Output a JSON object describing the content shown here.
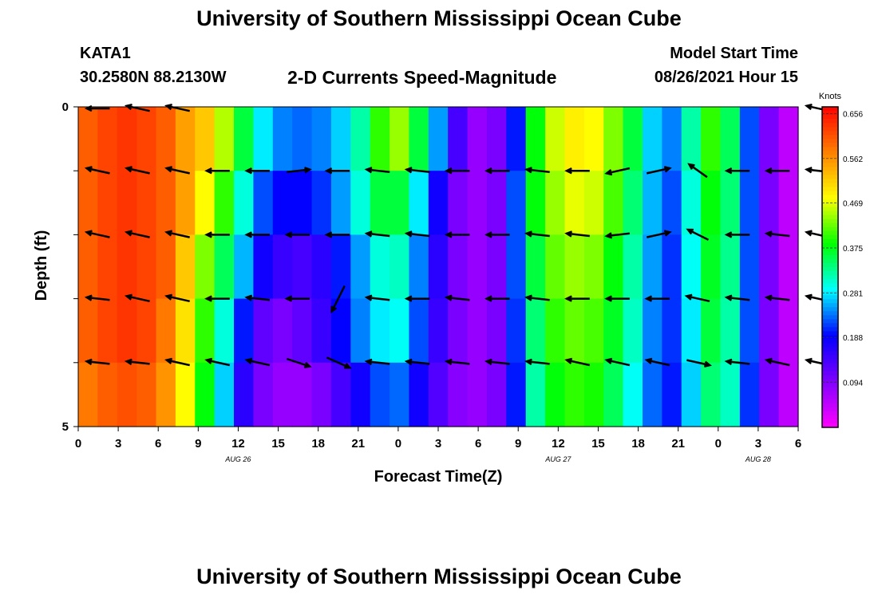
{
  "header": {
    "title": "University of Southern Mississippi Ocean Cube",
    "station": "KATA1",
    "coordinates": "30.2580N  88.2130W",
    "subtitle": "2-D Currents Speed-Magnitude",
    "model_start_label": "Model Start Time",
    "model_start_value": "08/26/2021 Hour 15"
  },
  "footer": {
    "title": "University of Southern Mississippi Ocean Cube"
  },
  "chart_data": {
    "type": "heatmap",
    "xlabel": "Forecast Time(Z)",
    "ylabel": "Depth (ft)",
    "x_tick_labels": [
      "0",
      "3",
      "6",
      "9",
      "12",
      "15",
      "18",
      "21",
      "0",
      "3",
      "6",
      "9",
      "12",
      "15",
      "18",
      "21",
      "0",
      "3",
      "6"
    ],
    "date_labels": [
      {
        "label": "AUG 26",
        "tick_index": 4
      },
      {
        "label": "AUG 27",
        "tick_index": 12
      },
      {
        "label": "AUG 28",
        "tick_index": 17
      }
    ],
    "y_tick_labels": [
      "0",
      "5"
    ],
    "ylim": [
      0,
      5
    ],
    "colorbar": {
      "unit": "Knots",
      "min": 0.0,
      "max": 0.67,
      "ticks": [
        "0.656",
        "0.562",
        "0.469",
        "0.375",
        "0.281",
        "0.188",
        "0.094"
      ],
      "tick_values": [
        0.656,
        0.562,
        0.469,
        0.375,
        0.281,
        0.188,
        0.094
      ],
      "colors": [
        "#ff00ff",
        "#8000ff",
        "#0000ff",
        "#00ffff",
        "#00ff00",
        "#ffff00",
        "#ff8000",
        "#ff0000"
      ]
    },
    "depth_layers": 5,
    "time_steps": 37,
    "speed_knots": [
      [
        0.6,
        0.62,
        0.63,
        0.62,
        0.6,
        0.55,
        0.52,
        0.45,
        0.36,
        0.28,
        0.24,
        0.23,
        0.24,
        0.27,
        0.32,
        0.4,
        0.44,
        0.36,
        0.25,
        0.14,
        0.08,
        0.1,
        0.2,
        0.38,
        0.46,
        0.49,
        0.48,
        0.43,
        0.36,
        0.27,
        0.24,
        0.32,
        0.4,
        0.35,
        0.22,
        0.1,
        0.05
      ],
      [
        0.6,
        0.62,
        0.63,
        0.62,
        0.6,
        0.55,
        0.48,
        0.4,
        0.3,
        0.22,
        0.19,
        0.19,
        0.21,
        0.25,
        0.3,
        0.36,
        0.36,
        0.28,
        0.18,
        0.1,
        0.08,
        0.1,
        0.22,
        0.38,
        0.44,
        0.47,
        0.46,
        0.41,
        0.34,
        0.26,
        0.22,
        0.3,
        0.38,
        0.34,
        0.22,
        0.1,
        0.05
      ],
      [
        0.6,
        0.62,
        0.63,
        0.62,
        0.6,
        0.52,
        0.43,
        0.35,
        0.26,
        0.18,
        0.15,
        0.14,
        0.16,
        0.2,
        0.25,
        0.3,
        0.31,
        0.24,
        0.16,
        0.1,
        0.08,
        0.1,
        0.22,
        0.36,
        0.42,
        0.44,
        0.43,
        0.38,
        0.32,
        0.25,
        0.21,
        0.29,
        0.37,
        0.33,
        0.22,
        0.1,
        0.05
      ],
      [
        0.6,
        0.62,
        0.63,
        0.62,
        0.58,
        0.5,
        0.4,
        0.3,
        0.2,
        0.12,
        0.1,
        0.12,
        0.15,
        0.19,
        0.24,
        0.28,
        0.29,
        0.22,
        0.15,
        0.1,
        0.08,
        0.1,
        0.21,
        0.34,
        0.4,
        0.42,
        0.41,
        0.37,
        0.31,
        0.24,
        0.21,
        0.28,
        0.36,
        0.32,
        0.22,
        0.1,
        0.05
      ],
      [
        0.58,
        0.6,
        0.61,
        0.6,
        0.56,
        0.48,
        0.38,
        0.27,
        0.16,
        0.1,
        0.08,
        0.08,
        0.1,
        0.14,
        0.18,
        0.22,
        0.23,
        0.18,
        0.13,
        0.09,
        0.08,
        0.1,
        0.2,
        0.32,
        0.38,
        0.4,
        0.39,
        0.35,
        0.29,
        0.23,
        0.2,
        0.27,
        0.34,
        0.31,
        0.21,
        0.1,
        0.05
      ]
    ],
    "vector_rows": [
      {
        "row": 0,
        "dx": [
          -0.9,
          -0.9,
          -0.9,
          0,
          0,
          0,
          0,
          0,
          0,
          0,
          0,
          0,
          0,
          0,
          0,
          0,
          0,
          0,
          -0.9
        ],
        "dy": [
          0,
          0.2,
          0.2,
          0,
          0,
          0,
          0,
          0,
          0,
          0,
          0,
          0,
          0,
          0,
          0,
          0,
          0,
          0,
          0.2
        ]
      },
      {
        "row": 1,
        "dx": [
          -0.9,
          -0.9,
          -0.9,
          -0.9,
          -0.9,
          0.9,
          -0.9,
          -0.9,
          -0.9,
          -0.9,
          -0.9,
          -0.9,
          -0.9,
          -0.9,
          0.9,
          -0.7,
          -0.9,
          -0.9,
          -0.9
        ],
        "dy": [
          0.2,
          0.2,
          0.2,
          0,
          0,
          0.1,
          0,
          0.1,
          0.1,
          0,
          0,
          0.1,
          0,
          -0.2,
          0.2,
          0.5,
          0,
          0,
          0.1
        ]
      },
      {
        "row": 2,
        "dx": [
          -0.9,
          -0.9,
          -0.9,
          -0.9,
          -0.9,
          -0.9,
          -0.9,
          -0.9,
          -0.9,
          -0.9,
          -0.9,
          -0.9,
          -0.9,
          -0.9,
          0.9,
          -0.8,
          -0.9,
          -0.9,
          -0.9
        ],
        "dy": [
          0.2,
          0.2,
          0.2,
          0,
          0,
          0,
          0,
          0.1,
          0.1,
          0,
          0,
          0.1,
          0.1,
          -0.1,
          0.2,
          0.4,
          0,
          0.1,
          0.2
        ]
      },
      {
        "row": 3,
        "dx": [
          -0.9,
          -0.9,
          -0.9,
          -0.9,
          -0.9,
          -0.9,
          -0.5,
          -0.9,
          -0.9,
          -0.9,
          -0.9,
          -0.9,
          -0.9,
          -0.9,
          -0.9,
          -0.9,
          -0.9,
          -0.9,
          -0.9
        ],
        "dy": [
          0.1,
          0.2,
          0.2,
          0,
          0.1,
          0,
          -1.0,
          0.1,
          0,
          0.1,
          0,
          0.1,
          0,
          0,
          0,
          0.2,
          0.1,
          0.1,
          0.2
        ]
      },
      {
        "row": 4,
        "dx": [
          -0.9,
          -0.9,
          -0.9,
          -0.9,
          -0.9,
          0.9,
          0.9,
          -0.9,
          -0.9,
          -0.9,
          -0.9,
          -0.9,
          -0.9,
          -0.9,
          -0.9,
          0.9,
          -0.9,
          -0.9,
          -0.9
        ],
        "dy": [
          0.1,
          0.1,
          0.2,
          0.2,
          0.2,
          -0.3,
          -0.4,
          0.1,
          0.1,
          0.1,
          0.1,
          0.1,
          0.2,
          0.2,
          0.2,
          -0.2,
          0.1,
          0.2,
          0.2
        ]
      }
    ]
  }
}
